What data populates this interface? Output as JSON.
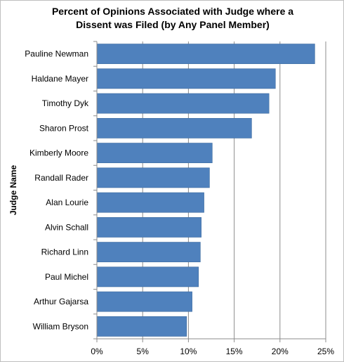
{
  "chart_data": {
    "type": "bar",
    "orientation": "horizontal",
    "title": "Percent of Opinions Associated with Judge where a\nDissent was Filed (by Any Panel Member)",
    "xlabel": "",
    "ylabel": "Judge Name",
    "xlim": [
      0,
      25
    ],
    "x_ticks": [
      "0%",
      "5%",
      "10%",
      "15%",
      "20%",
      "25%"
    ],
    "grid": "vertical",
    "bar_color": "#4f81bd",
    "categories": [
      "Pauline Newman",
      "Haldane Mayer",
      "Timothy Dyk",
      "Sharon Prost",
      "Kimberly Moore",
      "Randall Rader",
      "Alan Lourie",
      "Alvin Schall",
      "Richard Linn",
      "Paul Michel",
      "Arthur Gajarsa",
      "William Bryson"
    ],
    "values": [
      23.8,
      19.5,
      18.8,
      16.9,
      12.6,
      12.3,
      11.7,
      11.4,
      11.3,
      11.1,
      10.4,
      9.8
    ]
  }
}
